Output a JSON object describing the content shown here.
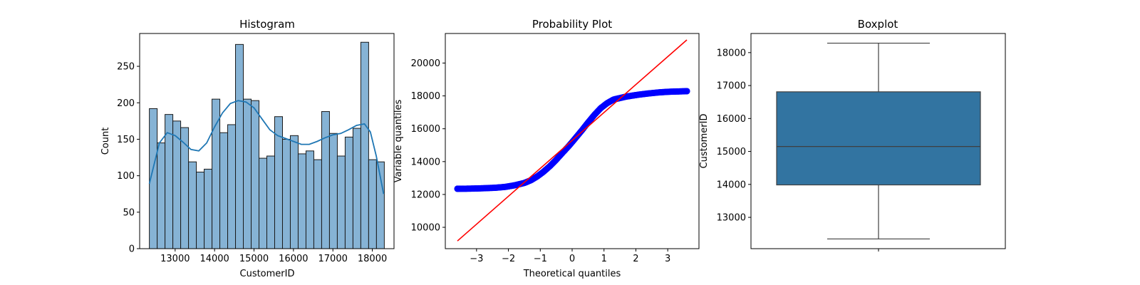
{
  "chart_data": [
    {
      "type": "bar",
      "title": "Histogram",
      "xlabel": "CustomerID",
      "ylabel": "Count",
      "xlim": [
        12100,
        18550
      ],
      "ylim": [
        0,
        295
      ],
      "xticks": [
        13000,
        14000,
        15000,
        16000,
        17000,
        18000
      ],
      "yticks": [
        0,
        50,
        100,
        150,
        200,
        250
      ],
      "bin_start": 12346,
      "bin_width": 198.6,
      "values": [
        192,
        145,
        184,
        175,
        166,
        119,
        105,
        109,
        205,
        159,
        170,
        280,
        205,
        203,
        124,
        127,
        181,
        150,
        155,
        130,
        134,
        122,
        188,
        158,
        127,
        153,
        165,
        283,
        122,
        119
      ],
      "kde": {
        "x": [
          12346,
          12450,
          12600,
          12800,
          13000,
          13200,
          13400,
          13600,
          13800,
          14000,
          14200,
          14400,
          14600,
          14800,
          15000,
          15200,
          15400,
          15600,
          15800,
          16000,
          16200,
          16400,
          16600,
          16800,
          17000,
          17200,
          17400,
          17600,
          17800,
          17950,
          18100,
          18287
        ],
        "y": [
          89,
          112,
          145,
          159,
          155,
          146,
          136,
          134,
          145,
          167,
          186,
          199,
          203,
          201,
          193,
          178,
          163,
          155,
          151,
          147,
          143,
          143,
          147,
          152,
          156,
          158,
          163,
          169,
          171,
          160,
          127,
          75
        ]
      },
      "colors": {
        "bar": "#86b3d5",
        "edge": "#1a1a1a",
        "kde": "#1f77b4"
      }
    },
    {
      "type": "scatter",
      "title": "Probability Plot",
      "xlabel": "Theoretical quantiles",
      "ylabel": "Variable quantiles",
      "xlim": [
        -3.98,
        3.98
      ],
      "ylim": [
        8700,
        21800
      ],
      "xticks": [
        -3,
        -2,
        -1,
        0,
        1,
        2,
        3
      ],
      "yticks": [
        10000,
        12000,
        14000,
        16000,
        18000,
        20000
      ],
      "quantile_curve": {
        "x": [
          -3.6,
          -3.3,
          -3.0,
          -2.7,
          -2.4,
          -2.1,
          -1.8,
          -1.5,
          -1.3,
          -1.1,
          -0.9,
          -0.7,
          -0.5,
          -0.3,
          -0.1,
          0.1,
          0.3,
          0.5,
          0.7,
          0.9,
          1.1,
          1.3,
          1.5,
          1.7,
          1.9,
          2.1,
          2.4,
          2.7,
          3.0,
          3.3,
          3.6
        ],
        "y": [
          12347,
          12352,
          12365,
          12385,
          12410,
          12460,
          12560,
          12700,
          12860,
          13090,
          13380,
          13720,
          14110,
          14540,
          14960,
          15420,
          15890,
          16380,
          16850,
          17260,
          17560,
          17780,
          17870,
          17960,
          18020,
          18080,
          18150,
          18210,
          18250,
          18270,
          18287
        ]
      },
      "fit_line": {
        "slope": 1700,
        "intercept": 15290,
        "x_range": [
          -3.6,
          3.6
        ]
      },
      "colors": {
        "points": "#0000ff",
        "line": "#ff0000"
      }
    },
    {
      "type": "box",
      "title": "Boxplot",
      "xlabel": "",
      "ylabel": "CustomerID",
      "ylim": [
        12050,
        18580
      ],
      "yticks": [
        13000,
        14000,
        15000,
        16000,
        17000,
        18000
      ],
      "whisker_low": 12346,
      "q1": 13985,
      "median": 15150,
      "q3": 16810,
      "whisker_high": 18287,
      "colors": {
        "box": "#3274a1",
        "edge": "#3f3f3f"
      }
    }
  ]
}
